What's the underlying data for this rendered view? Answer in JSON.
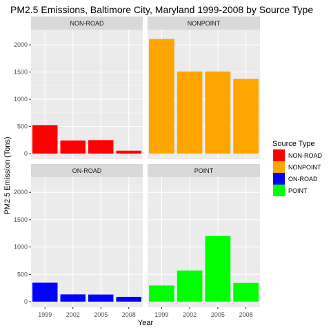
{
  "chart_data": {
    "type": "bar",
    "title": "PM2.5 Emissions, Baltimore City, Maryland 1999-2008 by Source Type",
    "xlabel": "Year",
    "ylabel": "PM2.5 Emission (Tons)",
    "categories": [
      "1999",
      "2002",
      "2005",
      "2008"
    ],
    "ylim": [
      -100,
      2280
    ],
    "yticks": [
      0,
      500,
      1000,
      1500,
      2000
    ],
    "grid": true,
    "legend": {
      "title": "Source Type",
      "position": "right"
    },
    "series": [
      {
        "name": "NON-ROAD",
        "color": "#ff0000",
        "values": [
          522,
          241,
          249,
          55
        ]
      },
      {
        "name": "NONPOINT",
        "color": "#ffa500",
        "values": [
          2108,
          1510,
          1510,
          1373
        ]
      },
      {
        "name": "ON-ROAD",
        "color": "#0000ff",
        "values": [
          347,
          134,
          131,
          88
        ]
      },
      {
        "name": "POINT",
        "color": "#00ff00",
        "values": [
          297,
          570,
          1201,
          344
        ]
      }
    ]
  }
}
